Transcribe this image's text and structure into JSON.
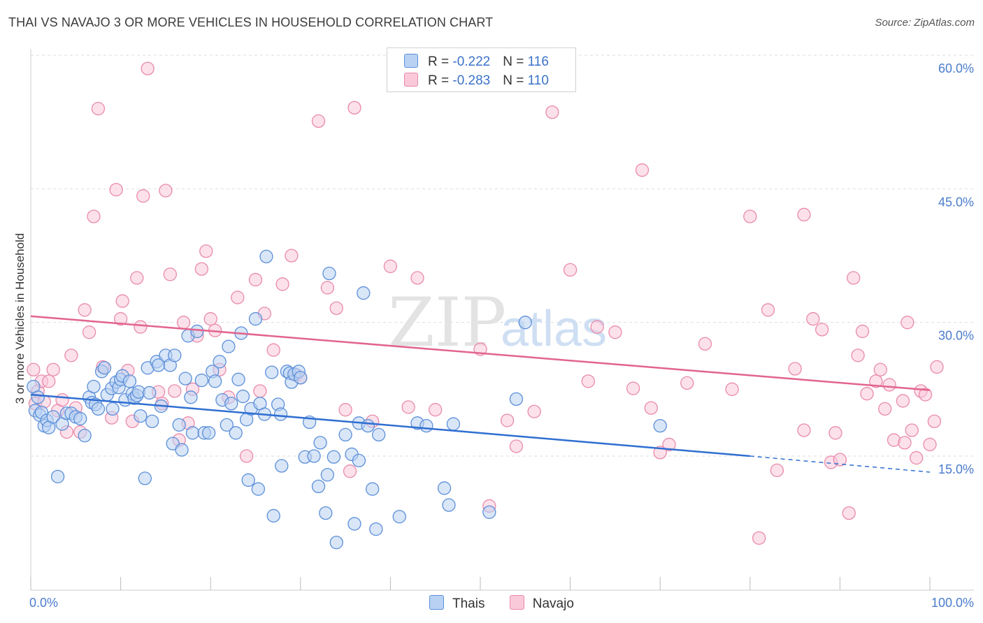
{
  "title": "THAI VS NAVAJO 3 OR MORE VEHICLES IN HOUSEHOLD CORRELATION CHART",
  "source": "Source: ZipAtlas.com",
  "watermark": {
    "zip": "ZIP",
    "atlas": "atlas"
  },
  "legend": {
    "thais": {
      "r_label": "R = ",
      "r_value": "-0.222",
      "n_label": "N = ",
      "n_value": "116"
    },
    "navajo": {
      "r_label": "R = ",
      "r_value": "-0.283",
      "n_label": "N = ",
      "n_value": "110"
    }
  },
  "bottom_legend": {
    "thais": "Thais",
    "navajo": "Navajo"
  },
  "colors": {
    "thais_fill": "#b9d2f3",
    "thais_stroke": "#5b8fd9",
    "thais_line": "#2f6fd1",
    "navajo_fill": "#f9c9da",
    "navajo_stroke": "#e98aaa",
    "navajo_line": "#e2648e",
    "grid": "#dddddd",
    "tick_text": "#4a7ccc"
  },
  "chart_data": {
    "type": "scatter",
    "title": "THAI VS NAVAJO 3 OR MORE VEHICLES IN HOUSEHOLD CORRELATION CHART",
    "xlabel": "",
    "ylabel": "3 or more Vehicles in Household",
    "xlim": [
      0,
      100
    ],
    "ylim": [
      0,
      65
    ],
    "x_tick_labels": [
      "0.0%",
      "100.0%"
    ],
    "y_ticks": [
      15,
      30,
      45,
      60
    ],
    "y_tick_labels": [
      "15.0%",
      "30.0%",
      "45.0%",
      "60.0%"
    ],
    "grid": true,
    "legend_position": "top-center",
    "series": [
      {
        "name": "Thais",
        "r": -0.222,
        "n": 116,
        "trend": {
          "x0": 0,
          "y0": 21.9,
          "x1": 80,
          "y1": 15.0,
          "x_dashed_end": 100,
          "y_dashed_end": 13.2
        },
        "points": [
          [
            0.3,
            22.8
          ],
          [
            0.5,
            20.1
          ],
          [
            0.8,
            21.6
          ],
          [
            1,
            19.6
          ],
          [
            1.2,
            19.9
          ],
          [
            1.5,
            18.4
          ],
          [
            1.8,
            19.0
          ],
          [
            2,
            18.2
          ],
          [
            2.5,
            19.4
          ],
          [
            3,
            12.7
          ],
          [
            3.5,
            18.6
          ],
          [
            4,
            19.8
          ],
          [
            4.5,
            19.8
          ],
          [
            5,
            19.4
          ],
          [
            5.5,
            19.2
          ],
          [
            6,
            17.3
          ],
          [
            6.5,
            21.6
          ],
          [
            6.8,
            21.0
          ],
          [
            7,
            22.8
          ],
          [
            7.2,
            20.8
          ],
          [
            7.5,
            20.3
          ],
          [
            7.9,
            24.5
          ],
          [
            8.2,
            24.9
          ],
          [
            8.5,
            21.9
          ],
          [
            9,
            22.6
          ],
          [
            9.1,
            20.3
          ],
          [
            9.5,
            23.3
          ],
          [
            9.8,
            22.7
          ],
          [
            10,
            23.6
          ],
          [
            10.2,
            24.0
          ],
          [
            10.5,
            21.3
          ],
          [
            11,
            23.4
          ],
          [
            11.3,
            22.0
          ],
          [
            11.5,
            21.5
          ],
          [
            11.8,
            21.8
          ],
          [
            12,
            22.2
          ],
          [
            12.2,
            19.5
          ],
          [
            12.7,
            12.5
          ],
          [
            13,
            24.9
          ],
          [
            13.2,
            22.1
          ],
          [
            13.5,
            18.9
          ],
          [
            14,
            25.6
          ],
          [
            14.2,
            25.2
          ],
          [
            14.5,
            20.6
          ],
          [
            15,
            26.3
          ],
          [
            15.5,
            25.2
          ],
          [
            15.8,
            16.4
          ],
          [
            16,
            26.3
          ],
          [
            16.5,
            18.5
          ],
          [
            16.8,
            15.7
          ],
          [
            17.2,
            23.7
          ],
          [
            17.5,
            28.5
          ],
          [
            17.8,
            21.6
          ],
          [
            18,
            17.6
          ],
          [
            18.5,
            29.0
          ],
          [
            19,
            23.5
          ],
          [
            19.3,
            17.6
          ],
          [
            19.8,
            17.6
          ],
          [
            20.2,
            24.5
          ],
          [
            20.5,
            23.4
          ],
          [
            21,
            25.6
          ],
          [
            21.3,
            21.3
          ],
          [
            21.8,
            18.5
          ],
          [
            22,
            27.3
          ],
          [
            22.3,
            20.9
          ],
          [
            22.8,
            17.6
          ],
          [
            23.1,
            23.6
          ],
          [
            23.4,
            28.8
          ],
          [
            23.6,
            21.7
          ],
          [
            24,
            19.1
          ],
          [
            24.2,
            12.3
          ],
          [
            24.5,
            20.3
          ],
          [
            25,
            30.4
          ],
          [
            25.3,
            11.3
          ],
          [
            25.5,
            20.9
          ],
          [
            26,
            19.7
          ],
          [
            26.2,
            37.4
          ],
          [
            26.8,
            24.4
          ],
          [
            27,
            8.3
          ],
          [
            27.5,
            20.8
          ],
          [
            27.8,
            19.7
          ],
          [
            27.9,
            13.9
          ],
          [
            28.5,
            24.5
          ],
          [
            28.8,
            24.3
          ],
          [
            29,
            23.3
          ],
          [
            29.3,
            24.2
          ],
          [
            29.8,
            24.5
          ],
          [
            30,
            23.8
          ],
          [
            30.5,
            14.9
          ],
          [
            31,
            18.8
          ],
          [
            31.5,
            15.0
          ],
          [
            32,
            11.6
          ],
          [
            32.2,
            16.5
          ],
          [
            32.8,
            8.6
          ],
          [
            33,
            12.9
          ],
          [
            33.2,
            35.5
          ],
          [
            33.7,
            14.9
          ],
          [
            34,
            5.3
          ],
          [
            35,
            17.4
          ],
          [
            35.7,
            15.2
          ],
          [
            36,
            7.4
          ],
          [
            36.5,
            14.5
          ],
          [
            36.5,
            18.7
          ],
          [
            37,
            33.3
          ],
          [
            37.5,
            18.4
          ],
          [
            38,
            11.3
          ],
          [
            38.4,
            6.8
          ],
          [
            38.7,
            17.4
          ],
          [
            41,
            8.2
          ],
          [
            43,
            18.7
          ],
          [
            44,
            18.4
          ],
          [
            46,
            11.4
          ],
          [
            46.5,
            9.5
          ],
          [
            47,
            18.6
          ],
          [
            51,
            8.7
          ],
          [
            54,
            21.4
          ],
          [
            55,
            30.0
          ],
          [
            70,
            18.4
          ]
        ]
      },
      {
        "name": "Navajo",
        "r": -0.283,
        "n": 110,
        "trend": {
          "x0": 0,
          "y0": 30.7,
          "x1": 100,
          "y1": 22.4
        },
        "points": [
          [
            0.3,
            24.7
          ],
          [
            0.5,
            20.9
          ],
          [
            0.8,
            22.3
          ],
          [
            1.2,
            23.4
          ],
          [
            1.5,
            21.1
          ],
          [
            2,
            23.4
          ],
          [
            2.5,
            24.7
          ],
          [
            3,
            20.1
          ],
          [
            3.5,
            21.3
          ],
          [
            4,
            17.7
          ],
          [
            4.5,
            26.3
          ],
          [
            5,
            20.4
          ],
          [
            5.5,
            17.7
          ],
          [
            6,
            31.4
          ],
          [
            6.5,
            28.9
          ],
          [
            7,
            41.9
          ],
          [
            7.5,
            54.0
          ],
          [
            8,
            25.0
          ],
          [
            9,
            19.3
          ],
          [
            9.5,
            44.9
          ],
          [
            10,
            30.4
          ],
          [
            10.2,
            32.4
          ],
          [
            10.8,
            24.6
          ],
          [
            11.3,
            18.9
          ],
          [
            11.8,
            35.0
          ],
          [
            12.2,
            29.5
          ],
          [
            12.5,
            44.2
          ],
          [
            13,
            58.5
          ],
          [
            14.2,
            22.2
          ],
          [
            14.6,
            20.9
          ],
          [
            15,
            44.8
          ],
          [
            15.5,
            35.4
          ],
          [
            16,
            22.3
          ],
          [
            16.5,
            16.8
          ],
          [
            17,
            30.0
          ],
          [
            17.5,
            18.7
          ],
          [
            18,
            22.5
          ],
          [
            18.5,
            28.5
          ],
          [
            19,
            36.0
          ],
          [
            19.5,
            38.0
          ],
          [
            20,
            30.4
          ],
          [
            20.5,
            29.1
          ],
          [
            21,
            24.7
          ],
          [
            22,
            21.6
          ],
          [
            23,
            32.8
          ],
          [
            24,
            15.0
          ],
          [
            25,
            34.8
          ],
          [
            25.5,
            22.3
          ],
          [
            26,
            31.0
          ],
          [
            27,
            26.9
          ],
          [
            28,
            34.3
          ],
          [
            29,
            37.5
          ],
          [
            29.5,
            24.1
          ],
          [
            30,
            23.8
          ],
          [
            32,
            52.6
          ],
          [
            33,
            33.9
          ],
          [
            34,
            31.6
          ],
          [
            35,
            20.2
          ],
          [
            35.5,
            13.3
          ],
          [
            36,
            54.1
          ],
          [
            38,
            18.9
          ],
          [
            40,
            36.3
          ],
          [
            42,
            20.5
          ],
          [
            43,
            35.0
          ],
          [
            45,
            20.2
          ],
          [
            50,
            27.0
          ],
          [
            51,
            9.4
          ],
          [
            53,
            19.0
          ],
          [
            54,
            16.1
          ],
          [
            56,
            20.0
          ],
          [
            58,
            53.6
          ],
          [
            60,
            35.9
          ],
          [
            62,
            23.4
          ],
          [
            63,
            29.5
          ],
          [
            65,
            28.9
          ],
          [
            67,
            22.6
          ],
          [
            68,
            47.1
          ],
          [
            69,
            20.4
          ],
          [
            70,
            15.4
          ],
          [
            71,
            16.3
          ],
          [
            73,
            23.2
          ],
          [
            75,
            27.6
          ],
          [
            78,
            22.5
          ],
          [
            80,
            41.9
          ],
          [
            81,
            5.8
          ],
          [
            82,
            31.4
          ],
          [
            83,
            13.4
          ],
          [
            85,
            24.8
          ],
          [
            86,
            17.9
          ],
          [
            86,
            42.1
          ],
          [
            87,
            30.4
          ],
          [
            88,
            29.2
          ],
          [
            89,
            14.3
          ],
          [
            89.5,
            17.6
          ],
          [
            90,
            14.6
          ],
          [
            91,
            8.6
          ],
          [
            91.5,
            35.0
          ],
          [
            92,
            26.3
          ],
          [
            92.5,
            29.0
          ],
          [
            93,
            22.0
          ],
          [
            94,
            23.4
          ],
          [
            94.5,
            24.7
          ],
          [
            95,
            20.3
          ],
          [
            95.5,
            23.0
          ],
          [
            96,
            16.8
          ],
          [
            97,
            21.2
          ],
          [
            97.2,
            16.5
          ],
          [
            97.5,
            30.0
          ],
          [
            98,
            17.9
          ],
          [
            98.5,
            14.8
          ],
          [
            99,
            22.3
          ],
          [
            99.5,
            21.9
          ],
          [
            100,
            16.3
          ],
          [
            100.5,
            18.9
          ],
          [
            101,
            25.0
          ]
        ]
      }
    ]
  }
}
